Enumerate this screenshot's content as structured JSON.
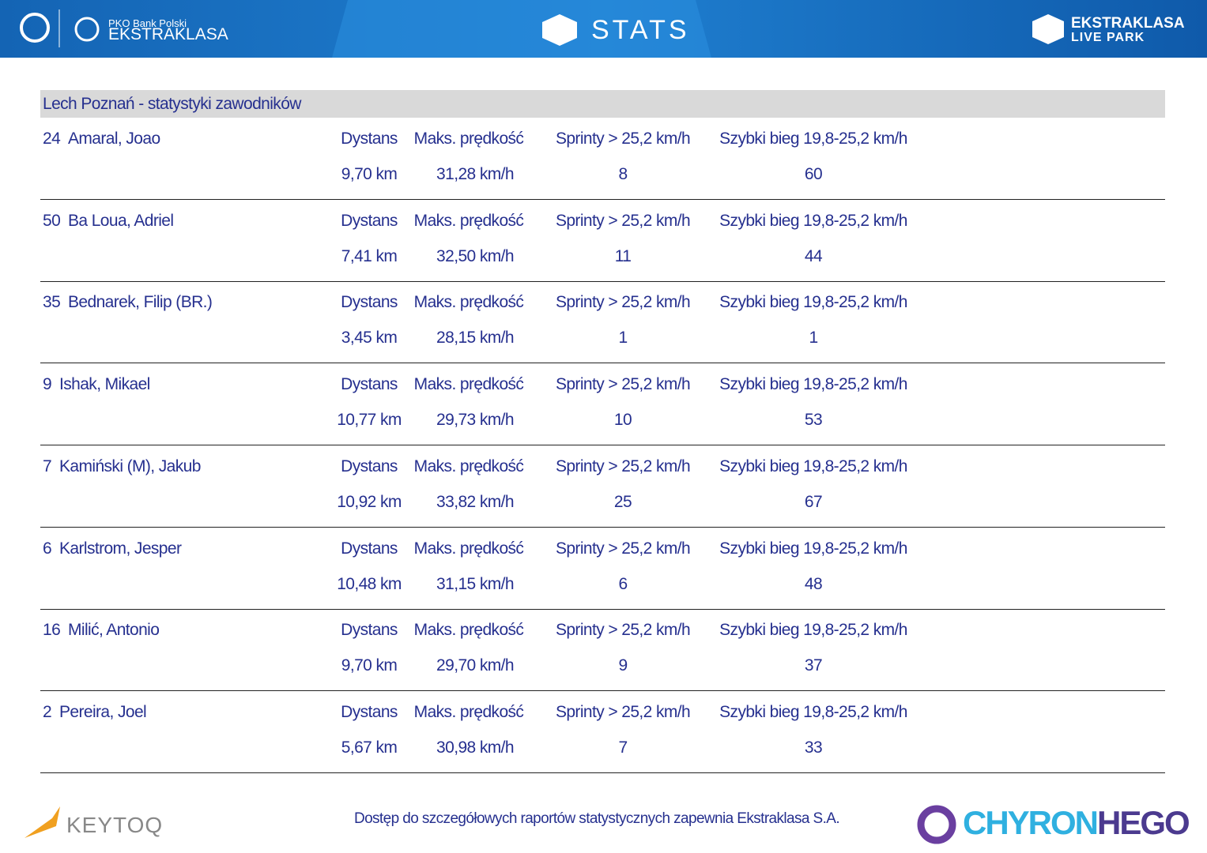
{
  "header": {
    "bank": "PKO Bank Polski",
    "league": "EKSTRAKLASA",
    "center": "STATS",
    "right_top": "EKSTRAKLASA",
    "right_bottom": "LIVE PARK"
  },
  "table": {
    "title": "Lech Poznań - statystyki zawodników",
    "columns": [
      "Dystans",
      "Maks. prędkość",
      "Sprinty > 25,2 km/h",
      "Szybki bieg 19,8-25,2 km/h"
    ],
    "rows": [
      {
        "number": "24",
        "name": "Amaral, Joao",
        "values": [
          "9,70 km",
          "31,28 km/h",
          "8",
          "60"
        ]
      },
      {
        "number": "50",
        "name": "Ba Loua, Adriel",
        "values": [
          "7,41 km",
          "32,50 km/h",
          "11",
          "44"
        ]
      },
      {
        "number": "35",
        "name": "Bednarek, Filip (BR.)",
        "values": [
          "3,45 km",
          "28,15 km/h",
          "1",
          "1"
        ]
      },
      {
        "number": "9",
        "name": "Ishak, Mikael",
        "values": [
          "10,77 km",
          "29,73 km/h",
          "10",
          "53"
        ]
      },
      {
        "number": "7",
        "name": "Kamiński (M), Jakub",
        "values": [
          "10,92 km",
          "33,82 km/h",
          "25",
          "67"
        ]
      },
      {
        "number": "6",
        "name": "Karlstrom, Jesper",
        "values": [
          "10,48 km",
          "31,15 km/h",
          "6",
          "48"
        ]
      },
      {
        "number": "16",
        "name": "Milić, Antonio",
        "values": [
          "9,70 km",
          "29,70 km/h",
          "9",
          "37"
        ]
      },
      {
        "number": "2",
        "name": "Pereira, Joel",
        "values": [
          "5,67 km",
          "30,98 km/h",
          "7",
          "33"
        ]
      }
    ]
  },
  "footer": {
    "left": "KEYTOQ",
    "note": "Dostęp do szczegółowych raportów statystycznych zapewnia Ekstraklasa S.A.",
    "right_a": "CHYRON",
    "right_b": "HEGO"
  }
}
